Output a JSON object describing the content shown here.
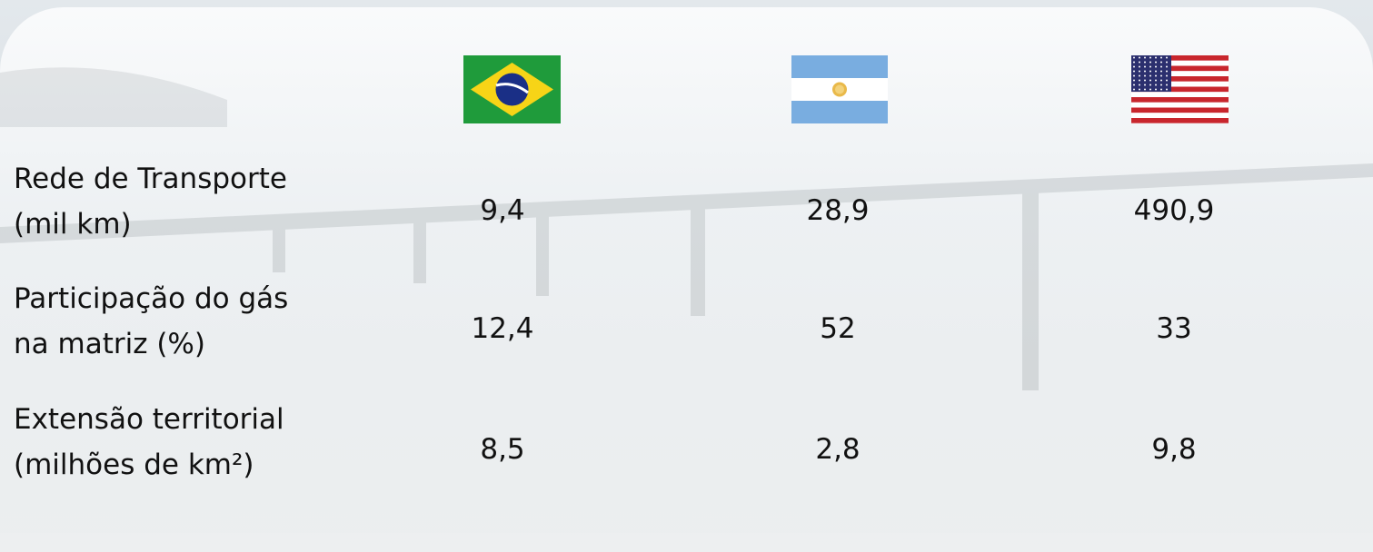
{
  "table": {
    "rows": [
      {
        "label": [
          "Rede de Transporte",
          "(mil km)"
        ],
        "values": [
          "9,4",
          "28,9",
          "490,9"
        ]
      },
      {
        "label": [
          "Participação do gás",
          "na matriz (%)"
        ],
        "values": [
          "12,4",
          "52",
          "33"
        ]
      },
      {
        "label": [
          "Extensão territorial",
          "(milhões de km²)"
        ],
        "values": [
          "8,5",
          "2,8",
          "9,8"
        ]
      }
    ]
  }
}
